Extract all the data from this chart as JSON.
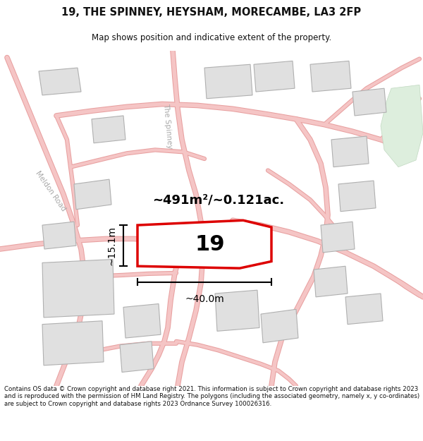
{
  "title_line1": "19, THE SPINNEY, HEYSHAM, MORECAMBE, LA3 2FP",
  "title_line2": "Map shows position and indicative extent of the property.",
  "footer_text": "Contains OS data © Crown copyright and database right 2021. This information is subject to Crown copyright and database rights 2023 and is reproduced with the permission of HM Land Registry. The polygons (including the associated geometry, namely x, y co-ordinates) are subject to Crown copyright and database rights 2023 Ordnance Survey 100026316.",
  "area_label": "~491m²/~0.121ac.",
  "width_label": "~40.0m",
  "height_label": "~15.1m",
  "plot_number": "19",
  "bg_color": "#f8f8f6",
  "road_color": "#f5c5c5",
  "road_stroke": "#e8a0a0",
  "building_fill": "#e0e0e0",
  "building_stroke": "#b0b0b0",
  "plot_fill": "#ffffff",
  "plot_stroke": "#dd0000",
  "dim_line_color": "#000000",
  "road_label_color": "#aaaaaa",
  "green_area_color": "#ddeedd"
}
